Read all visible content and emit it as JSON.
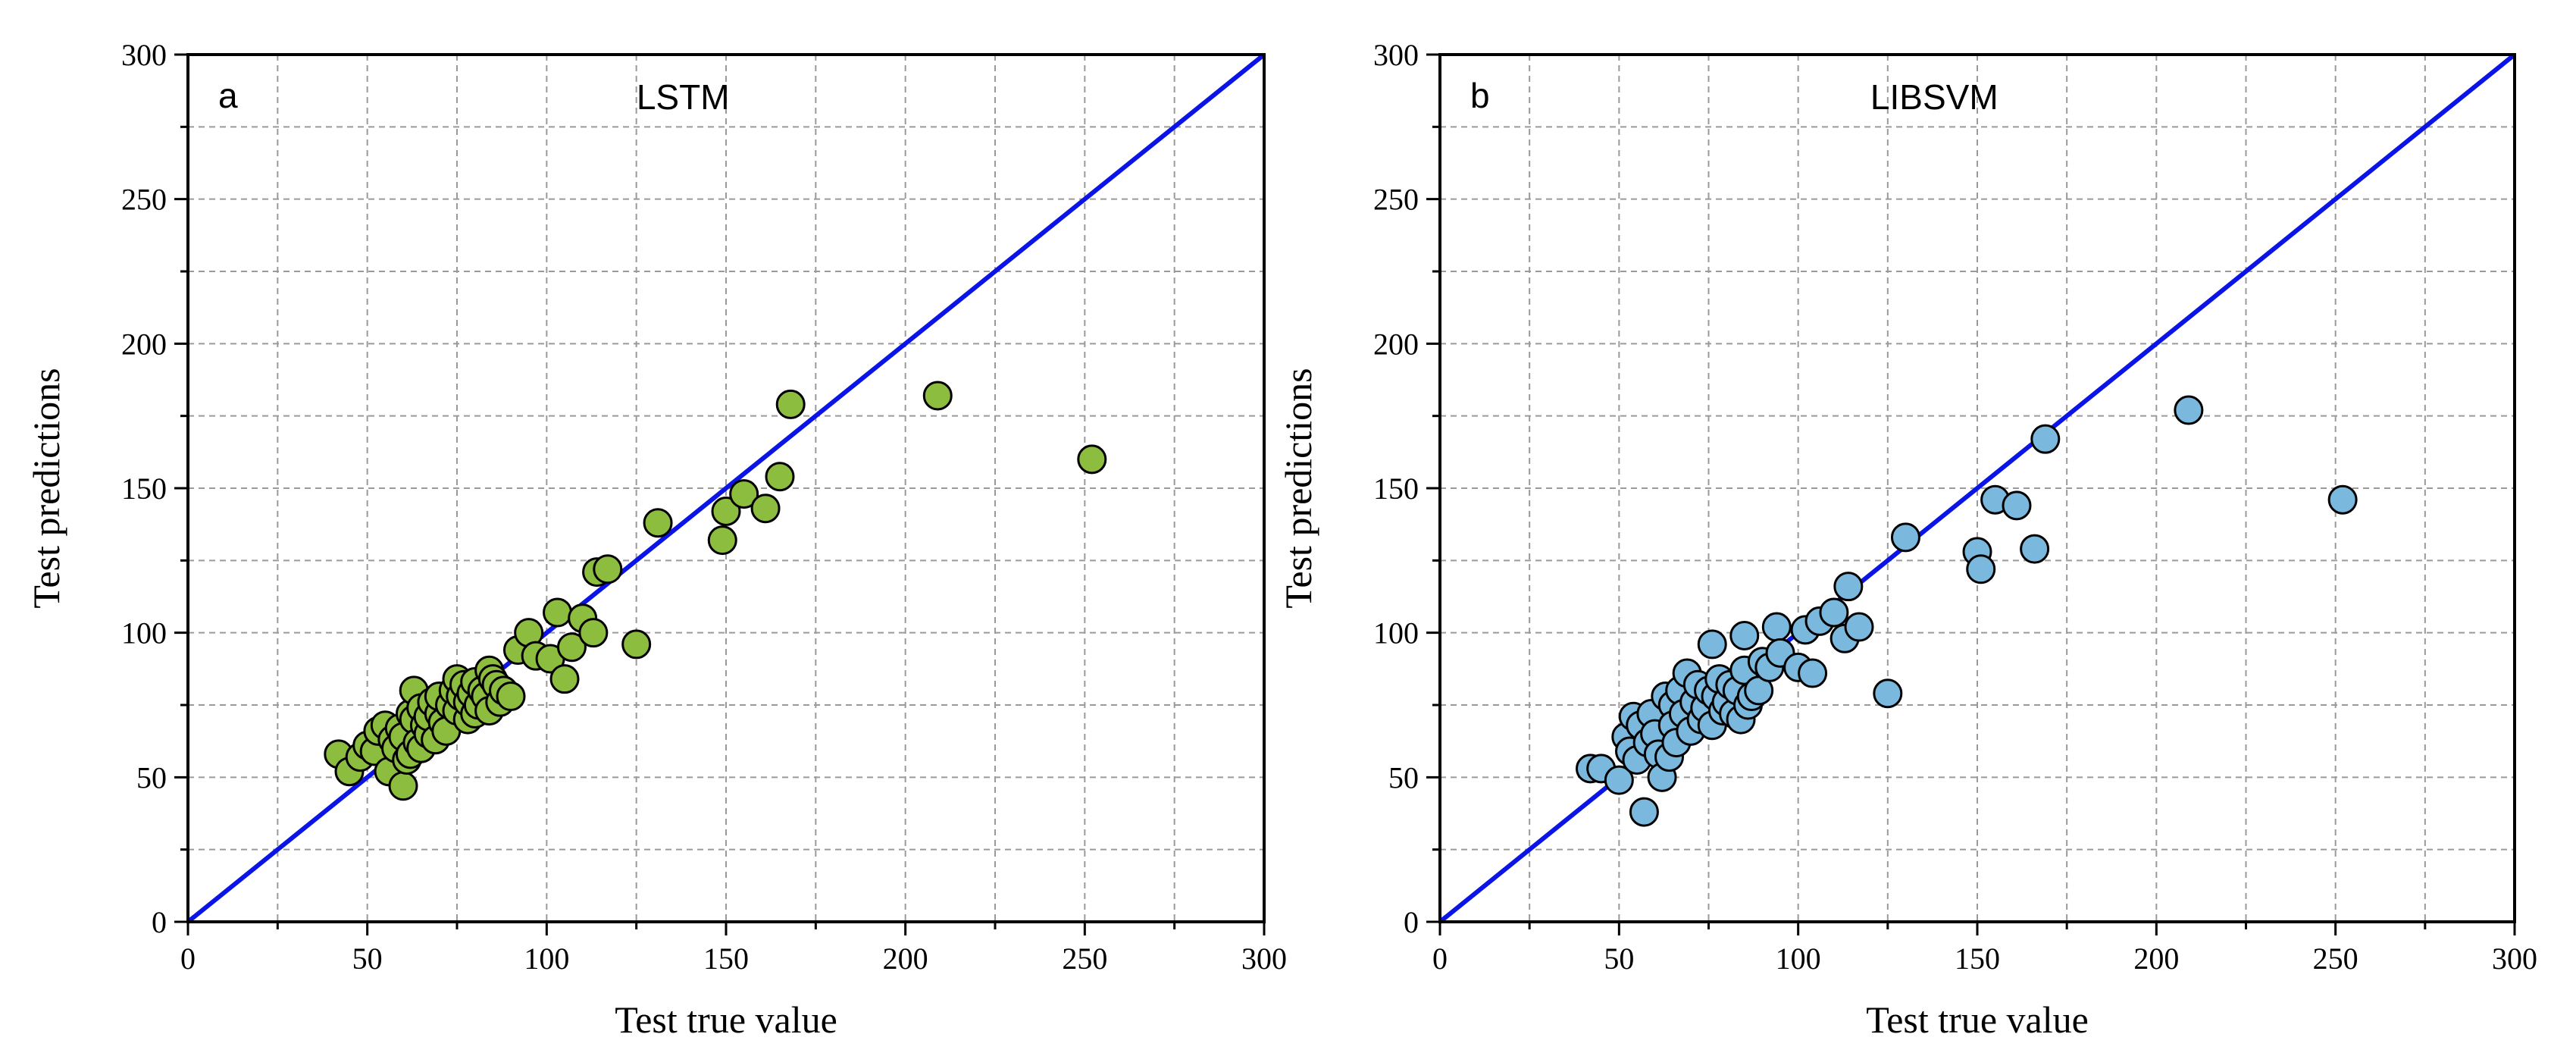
{
  "chart_data": [
    {
      "type": "scatter",
      "panel_letter": "a",
      "title": "LSTM",
      "xlabel": "Test true value",
      "ylabel": "Test predictions",
      "xlim": [
        0,
        300
      ],
      "ylim": [
        0,
        300
      ],
      "xticks": [
        "0",
        "50",
        "100",
        "150",
        "200",
        "250",
        "300"
      ],
      "yticks": [
        "0",
        "50",
        "100",
        "150",
        "200",
        "250",
        "300"
      ],
      "grid": true,
      "marker_color": "#8cbd3f",
      "reference_line": {
        "from": [
          0,
          0
        ],
        "to": [
          300,
          300
        ],
        "color": "#0a14e6"
      },
      "points": [
        [
          42,
          58
        ],
        [
          45,
          52
        ],
        [
          48,
          57
        ],
        [
          50,
          61
        ],
        [
          52,
          59
        ],
        [
          53,
          66
        ],
        [
          55,
          68
        ],
        [
          56,
          52
        ],
        [
          57,
          63
        ],
        [
          58,
          60
        ],
        [
          59,
          67
        ],
        [
          60,
          47
        ],
        [
          60,
          64
        ],
        [
          61,
          56
        ],
        [
          62,
          72
        ],
        [
          62,
          58
        ],
        [
          63,
          70
        ],
        [
          63,
          80
        ],
        [
          64,
          62
        ],
        [
          65,
          60
        ],
        [
          65,
          74
        ],
        [
          66,
          68
        ],
        [
          67,
          65
        ],
        [
          67,
          71
        ],
        [
          68,
          76
        ],
        [
          69,
          63
        ],
        [
          70,
          72
        ],
        [
          70,
          78
        ],
        [
          71,
          69
        ],
        [
          72,
          66
        ],
        [
          73,
          75
        ],
        [
          74,
          80
        ],
        [
          75,
          84
        ],
        [
          75,
          73
        ],
        [
          76,
          78
        ],
        [
          77,
          82
        ],
        [
          78,
          70
        ],
        [
          78,
          76
        ],
        [
          79,
          79
        ],
        [
          80,
          83
        ],
        [
          80,
          72
        ],
        [
          81,
          75
        ],
        [
          82,
          80
        ],
        [
          83,
          78
        ],
        [
          84,
          87
        ],
        [
          84,
          73
        ],
        [
          85,
          84
        ],
        [
          86,
          82
        ],
        [
          87,
          76
        ],
        [
          88,
          80
        ],
        [
          90,
          78
        ],
        [
          92,
          94
        ],
        [
          95,
          100
        ],
        [
          97,
          92
        ],
        [
          101,
          91
        ],
        [
          103,
          107
        ],
        [
          105,
          84
        ],
        [
          107,
          95
        ],
        [
          110,
          105
        ],
        [
          113,
          100
        ],
        [
          114,
          121
        ],
        [
          117,
          122
        ],
        [
          125,
          96
        ],
        [
          131,
          138
        ],
        [
          149,
          132
        ],
        [
          150,
          142
        ],
        [
          155,
          148
        ],
        [
          161,
          143
        ],
        [
          165,
          154
        ],
        [
          168,
          179
        ],
        [
          209,
          182
        ],
        [
          252,
          160
        ]
      ]
    },
    {
      "type": "scatter",
      "panel_letter": "b",
      "title": "LIBSVM",
      "xlabel": "Test true value",
      "ylabel": "Test predictions",
      "xlim": [
        0,
        300
      ],
      "ylim": [
        0,
        300
      ],
      "xticks": [
        "0",
        "50",
        "100",
        "150",
        "200",
        "250",
        "300"
      ],
      "yticks": [
        "0",
        "50",
        "100",
        "150",
        "200",
        "250",
        "300"
      ],
      "grid": true,
      "marker_color": "#7ab8de",
      "reference_line": {
        "from": [
          0,
          0
        ],
        "to": [
          300,
          300
        ],
        "color": "#0a14e6"
      },
      "points": [
        [
          42,
          53
        ],
        [
          45,
          53
        ],
        [
          50,
          49
        ],
        [
          52,
          64
        ],
        [
          53,
          59
        ],
        [
          54,
          71
        ],
        [
          55,
          56
        ],
        [
          56,
          68
        ],
        [
          57,
          38
        ],
        [
          58,
          62
        ],
        [
          59,
          72
        ],
        [
          60,
          65
        ],
        [
          61,
          58
        ],
        [
          62,
          50
        ],
        [
          63,
          78
        ],
        [
          64,
          57
        ],
        [
          65,
          75
        ],
        [
          65,
          68
        ],
        [
          66,
          62
        ],
        [
          67,
          80
        ],
        [
          68,
          72
        ],
        [
          69,
          86
        ],
        [
          70,
          66
        ],
        [
          71,
          76
        ],
        [
          72,
          82
        ],
        [
          73,
          70
        ],
        [
          74,
          74
        ],
        [
          75,
          80
        ],
        [
          76,
          96
        ],
        [
          76,
          68
        ],
        [
          77,
          78
        ],
        [
          78,
          84
        ],
        [
          79,
          73
        ],
        [
          80,
          76
        ],
        [
          81,
          82
        ],
        [
          82,
          72
        ],
        [
          83,
          80
        ],
        [
          84,
          70
        ],
        [
          85,
          99
        ],
        [
          85,
          87
        ],
        [
          86,
          75
        ],
        [
          87,
          78
        ],
        [
          89,
          80
        ],
        [
          90,
          90
        ],
        [
          92,
          88
        ],
        [
          94,
          102
        ],
        [
          95,
          93
        ],
        [
          100,
          88
        ],
        [
          102,
          101
        ],
        [
          104,
          86
        ],
        [
          106,
          104
        ],
        [
          110,
          107
        ],
        [
          113,
          98
        ],
        [
          114,
          116
        ],
        [
          117,
          102
        ],
        [
          125,
          79
        ],
        [
          130,
          133
        ],
        [
          150,
          128
        ],
        [
          151,
          122
        ],
        [
          155,
          146
        ],
        [
          161,
          144
        ],
        [
          166,
          129
        ],
        [
          169,
          167
        ],
        [
          209,
          177
        ],
        [
          252,
          146
        ]
      ]
    }
  ]
}
